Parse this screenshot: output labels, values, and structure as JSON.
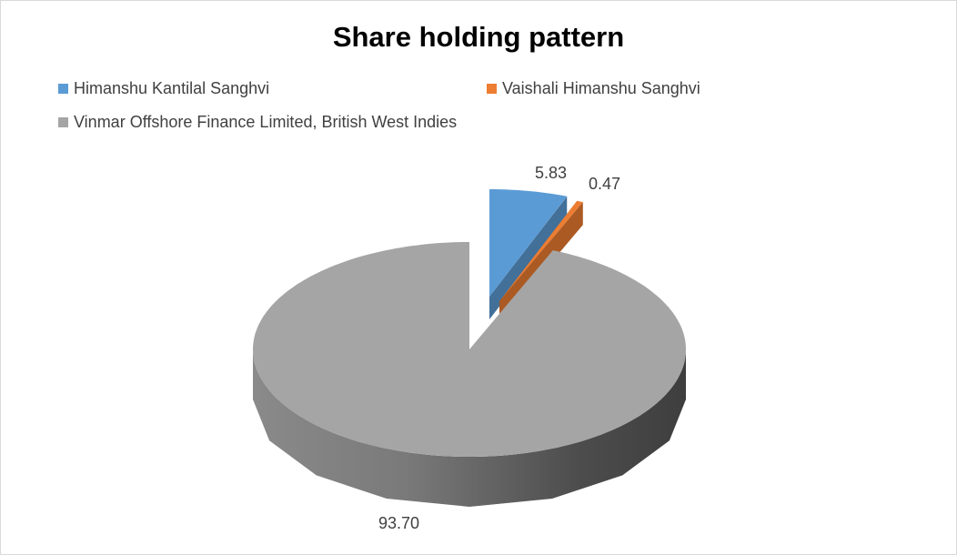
{
  "chart_data": {
    "type": "pie",
    "style": "3d-exploded",
    "title": "Share holding pattern",
    "legend_position": "top",
    "series": [
      {
        "name": "Himanshu Kantilal Sanghvi",
        "value": 5.83,
        "label": "5.83",
        "color": "#5b9bd5"
      },
      {
        "name": "Vaishali Himanshu Sanghvi",
        "value": 0.47,
        "label": "0.47",
        "color": "#ed7d31"
      },
      {
        "name": "Vinmar Offshore Finance Limited, British West Indies",
        "value": 93.7,
        "label": "93.70",
        "color": "#a5a5a5"
      }
    ]
  }
}
